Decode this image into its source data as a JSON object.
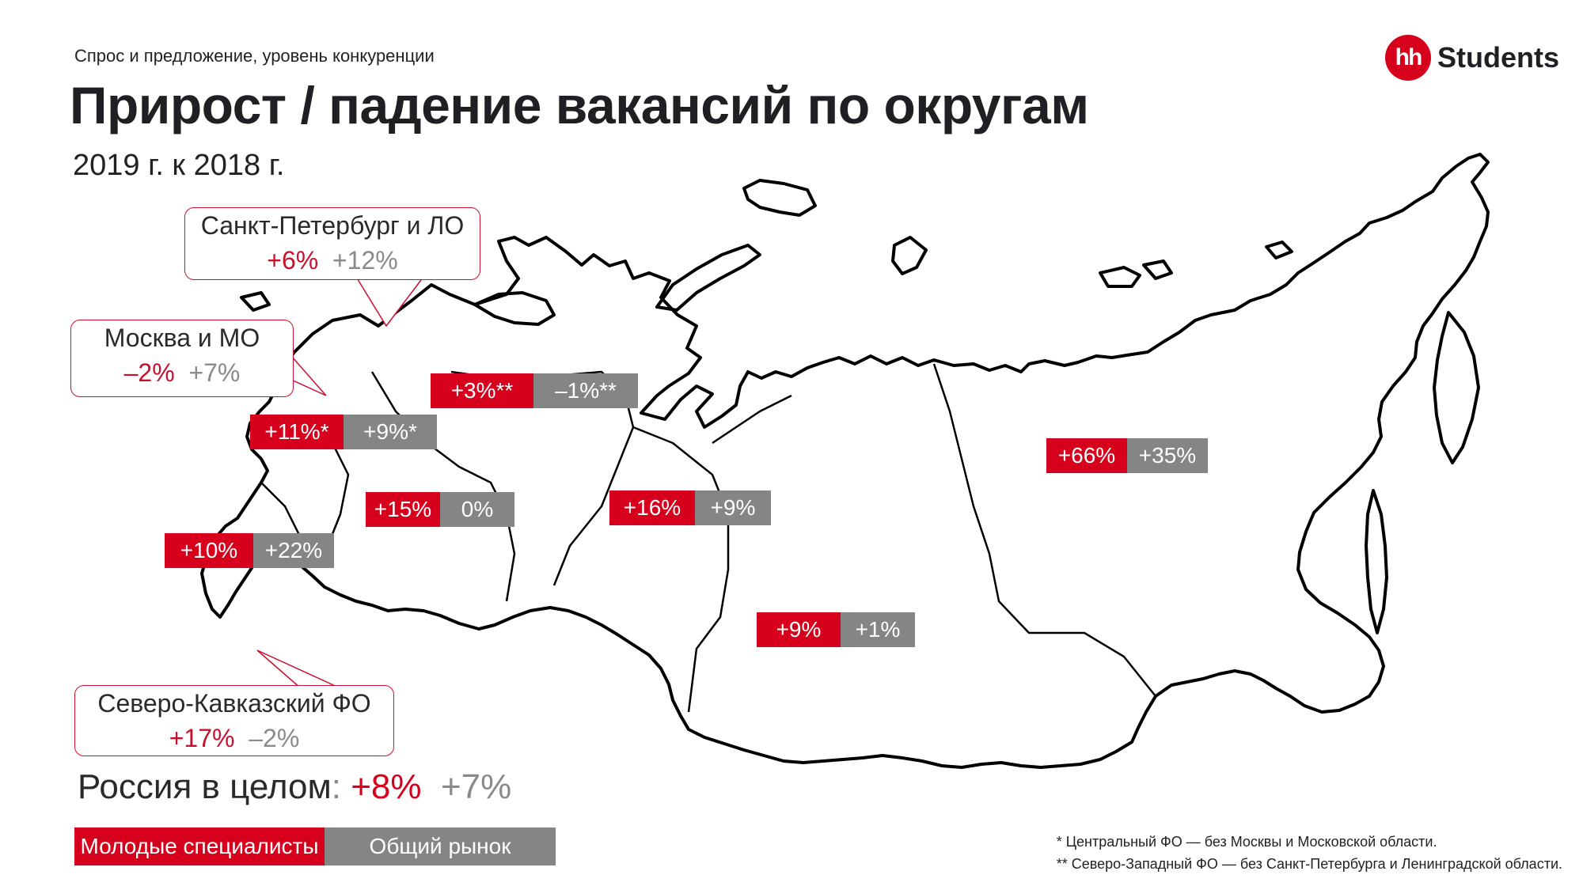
{
  "header": {
    "subtitle": "Спрос и предложение, уровень конкуренции",
    "title": "Прирост / падение вакансий по округам",
    "period": "2019 г. к 2018 г."
  },
  "logo": {
    "mark": "hh",
    "text": "Students"
  },
  "callouts": {
    "spb": {
      "label": "Санкт-Петербург и ЛО",
      "young": "+6%",
      "total": "+12%"
    },
    "moscow": {
      "label": "Москва и МО",
      "young": "–2%",
      "total": "+7%"
    },
    "nkfo": {
      "label": "Северо-Кавказский ФО",
      "young": "+17%",
      "total": "–2%"
    }
  },
  "districts": {
    "northwest": {
      "young": "+3%**",
      "total": "–1%**"
    },
    "central": {
      "young": "+11%*",
      "total": "+9%*"
    },
    "volga": {
      "young": "+15%",
      "total": "0%"
    },
    "south": {
      "young": "+10%",
      "total": "+22%"
    },
    "ural": {
      "young": "+16%",
      "total": "+9%"
    },
    "siberia": {
      "young": "+9%",
      "total": "+1%"
    },
    "fareast": {
      "young": "+66%",
      "total": "+35%"
    }
  },
  "russia_total": {
    "label": "Россия в целом",
    "colon": ":",
    "young": "+8%",
    "total": "+7%"
  },
  "legend": {
    "young_label": "Молодые специалисты",
    "total_label": "Общий рынок"
  },
  "footnotes": {
    "note1": "*  Центральный ФО — без Москвы и Московской области.",
    "note2": "** Северо-Западный ФО — без Санкт-Петербурга и Ленинградской области."
  },
  "colors": {
    "accent_red": "#d6001c",
    "neutral_gray": "#858585",
    "title_dark": "#1f1f24"
  }
}
